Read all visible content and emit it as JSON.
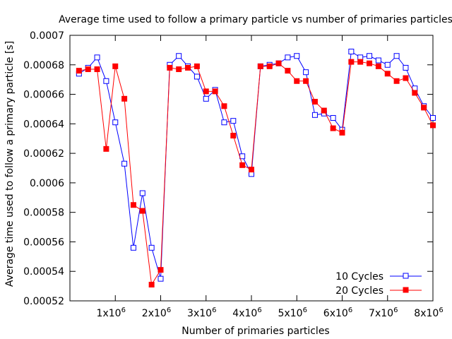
{
  "chart_data": {
    "type": "line",
    "title": "Average time used to follow a primary particle vs number of primaries particles",
    "xlabel": "Number of primaries particles",
    "ylabel": "Average time used to follow a primary particle [s]",
    "xlim": [
      0,
      8000000
    ],
    "ylim": [
      0.00052,
      0.0007
    ],
    "x_ticks": [
      {
        "value": 1000000,
        "base": "1x10",
        "exp": "6"
      },
      {
        "value": 2000000,
        "base": "2x10",
        "exp": "6"
      },
      {
        "value": 3000000,
        "base": "3x10",
        "exp": "6"
      },
      {
        "value": 4000000,
        "base": "4x10",
        "exp": "6"
      },
      {
        "value": 5000000,
        "base": "5x10",
        "exp": "6"
      },
      {
        "value": 6000000,
        "base": "6x10",
        "exp": "6"
      },
      {
        "value": 7000000,
        "base": "7x10",
        "exp": "6"
      },
      {
        "value": 8000000,
        "base": "8x10",
        "exp": "6"
      }
    ],
    "y_ticks": [
      {
        "value": 0.00052,
        "label": "0.00052"
      },
      {
        "value": 0.00054,
        "label": "0.00054"
      },
      {
        "value": 0.00056,
        "label": "0.00056"
      },
      {
        "value": 0.00058,
        "label": "0.00058"
      },
      {
        "value": 0.0006,
        "label": "0.0006"
      },
      {
        "value": 0.00062,
        "label": "0.00062"
      },
      {
        "value": 0.00064,
        "label": "0.00064"
      },
      {
        "value": 0.00066,
        "label": "0.00066"
      },
      {
        "value": 0.00068,
        "label": "0.00068"
      },
      {
        "value": 0.0007,
        "label": "0.0007"
      }
    ],
    "grid": false,
    "legend_position": "bottom-right",
    "x": [
      200000,
      400000,
      600000,
      800000,
      1000000,
      1200000,
      1400000,
      1600000,
      1800000,
      2000000,
      2200000,
      2400000,
      2600000,
      2800000,
      3000000,
      3200000,
      3400000,
      3600000,
      3800000,
      4000000,
      4200000,
      4400000,
      4600000,
      4800000,
      5000000,
      5200000,
      5400000,
      5600000,
      5800000,
      6000000,
      6200000,
      6400000,
      6600000,
      6800000,
      7000000,
      7200000,
      7400000,
      7600000,
      7800000,
      8000000
    ],
    "series": [
      {
        "name": "10 Cycles",
        "color": "#0000ff",
        "marker": "open-square",
        "values": [
          0.000674,
          0.000678,
          0.000685,
          0.000669,
          0.000641,
          0.000613,
          0.000556,
          0.000593,
          0.000556,
          0.000535,
          0.00068,
          0.000686,
          0.000679,
          0.000672,
          0.000657,
          0.000663,
          0.000641,
          0.000642,
          0.000618,
          0.000606,
          0.000679,
          0.00068,
          0.000681,
          0.000685,
          0.000686,
          0.000675,
          0.000646,
          0.000647,
          0.000644,
          0.000636,
          0.000689,
          0.000685,
          0.000686,
          0.000683,
          0.00068,
          0.000686,
          0.000678,
          0.000664,
          0.000652,
          0.000644
        ]
      },
      {
        "name": "20 Cycles",
        "color": "#ff0000",
        "marker": "filled-square",
        "values": [
          0.000676,
          0.000677,
          0.000677,
          0.000623,
          0.000679,
          0.000657,
          0.000585,
          0.000581,
          0.000531,
          0.000541,
          0.000678,
          0.000677,
          0.000678,
          0.000679,
          0.000662,
          0.000662,
          0.000652,
          0.000632,
          0.000612,
          0.000609,
          0.000679,
          0.000679,
          0.000681,
          0.000676,
          0.000669,
          0.000669,
          0.000655,
          0.000649,
          0.000637,
          0.000634,
          0.000682,
          0.000682,
          0.000681,
          0.000679,
          0.000674,
          0.000669,
          0.000671,
          0.000661,
          0.000651,
          0.000639
        ]
      }
    ]
  }
}
